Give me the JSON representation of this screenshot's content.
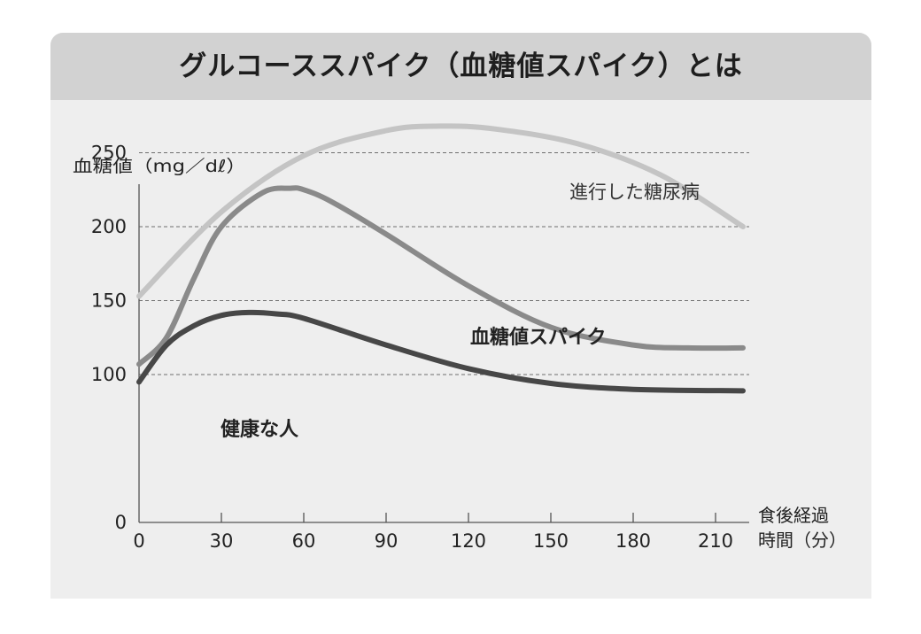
{
  "chart_data": {
    "type": "line",
    "title": "グルコーススパイク（血糖値スパイク）とは",
    "ylabel": "血糖値（mg／dℓ）",
    "xlabel_line1": "食後経過",
    "xlabel_line2": "時間（分）",
    "ylim": [
      0,
      280
    ],
    "xlim": [
      0,
      220
    ],
    "y_ticks": [
      "0",
      "100",
      "150",
      "200",
      "250"
    ],
    "y_tick_values": [
      0,
      100,
      150,
      200,
      250
    ],
    "x_ticks": [
      "0",
      "30",
      "60",
      "90",
      "120",
      "150",
      "180",
      "210"
    ],
    "x_tick_values": [
      0,
      30,
      60,
      90,
      120,
      150,
      180,
      210
    ],
    "grid": "horizontal-dashed",
    "series": [
      {
        "name": "進行した糖尿病",
        "color": "#c4c4c4",
        "x": [
          0,
          30,
          60,
          90,
          110,
          130,
          160,
          190,
          220
        ],
        "y": [
          153,
          210,
          248,
          265,
          268,
          266,
          256,
          235,
          200
        ]
      },
      {
        "name": "血糖値スパイク",
        "color": "#8a8a8a",
        "x": [
          0,
          10,
          20,
          30,
          45,
          55,
          60,
          70,
          90,
          120,
          150,
          180,
          200,
          220
        ],
        "y": [
          107,
          125,
          165,
          200,
          223,
          226,
          225,
          217,
          195,
          160,
          132,
          120,
          118,
          118
        ]
      },
      {
        "name": "健康な人",
        "color": "#474747",
        "x": [
          0,
          10,
          20,
          30,
          40,
          50,
          60,
          90,
          120,
          150,
          180,
          220
        ],
        "y": [
          95,
          120,
          133,
          140,
          142,
          141,
          138,
          120,
          104,
          94,
          90,
          89
        ]
      }
    ]
  }
}
